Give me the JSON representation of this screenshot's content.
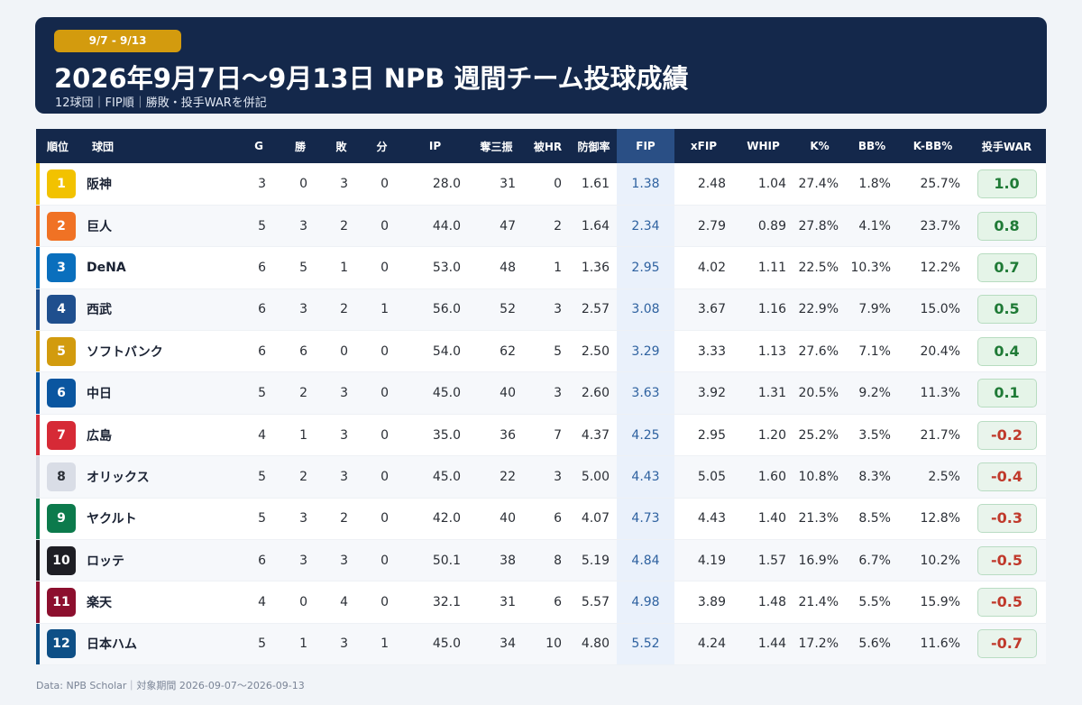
{
  "header": {
    "date_badge": "9/7 - 9/13",
    "title": "2026年9月7日～9月13日 NPB 週間チーム投球成績",
    "subtitle": "12球団｜FIP順｜勝敗・投手WARを併記"
  },
  "table": {
    "columns": [
      "順位",
      "球団",
      "G",
      "勝",
      "敗",
      "分",
      "IP",
      "奪三振",
      "被HR",
      "防御率",
      "FIP",
      "xFIP",
      "WHIP",
      "K%",
      "BB%",
      "K-BB%",
      "投手WAR"
    ],
    "rows": [
      {
        "rank": "1",
        "team": "阪神",
        "g": "3",
        "w": "0",
        "l": "3",
        "t": "0",
        "ip": "28.0",
        "so": "31",
        "hr": "0",
        "era": "1.61",
        "fip": "1.38",
        "xfip": "2.48",
        "whip": "1.04",
        "k": "27.4%",
        "bb": "1.8%",
        "kbb": "25.7%",
        "war": "1.0",
        "color": "#f2c200"
      },
      {
        "rank": "2",
        "team": "巨人",
        "g": "5",
        "w": "3",
        "l": "2",
        "t": "0",
        "ip": "44.0",
        "so": "47",
        "hr": "2",
        "era": "1.64",
        "fip": "2.34",
        "xfip": "2.79",
        "whip": "0.89",
        "k": "27.8%",
        "bb": "4.1%",
        "kbb": "23.7%",
        "war": "0.8",
        "color": "#f07224"
      },
      {
        "rank": "3",
        "team": "DeNA",
        "g": "6",
        "w": "5",
        "l": "1",
        "t": "0",
        "ip": "53.0",
        "so": "48",
        "hr": "1",
        "era": "1.36",
        "fip": "2.95",
        "xfip": "4.02",
        "whip": "1.11",
        "k": "22.5%",
        "bb": "10.3%",
        "kbb": "12.2%",
        "war": "0.7",
        "color": "#0a6fbd"
      },
      {
        "rank": "4",
        "team": "西武",
        "g": "6",
        "w": "3",
        "l": "2",
        "t": "1",
        "ip": "56.0",
        "so": "52",
        "hr": "3",
        "era": "2.57",
        "fip": "3.08",
        "xfip": "3.67",
        "whip": "1.16",
        "k": "22.9%",
        "bb": "7.9%",
        "kbb": "15.0%",
        "war": "0.5",
        "color": "#1f4f8e"
      },
      {
        "rank": "5",
        "team": "ソフトバンク",
        "g": "6",
        "w": "6",
        "l": "0",
        "t": "0",
        "ip": "54.0",
        "so": "62",
        "hr": "5",
        "era": "2.50",
        "fip": "3.29",
        "xfip": "3.33",
        "whip": "1.13",
        "k": "27.6%",
        "bb": "7.1%",
        "kbb": "20.4%",
        "war": "0.4",
        "color": "#d29b0e"
      },
      {
        "rank": "6",
        "team": "中日",
        "g": "5",
        "w": "2",
        "l": "3",
        "t": "0",
        "ip": "45.0",
        "so": "40",
        "hr": "3",
        "era": "2.60",
        "fip": "3.63",
        "xfip": "3.92",
        "whip": "1.31",
        "k": "20.5%",
        "bb": "9.2%",
        "kbb": "11.3%",
        "war": "0.1",
        "color": "#0a56a0"
      },
      {
        "rank": "7",
        "team": "広島",
        "g": "4",
        "w": "1",
        "l": "3",
        "t": "0",
        "ip": "35.0",
        "so": "36",
        "hr": "7",
        "era": "4.37",
        "fip": "4.25",
        "xfip": "2.95",
        "whip": "1.20",
        "k": "25.2%",
        "bb": "3.5%",
        "kbb": "21.7%",
        "war": "-0.2",
        "color": "#d62a36"
      },
      {
        "rank": "8",
        "team": "オリックス",
        "g": "5",
        "w": "2",
        "l": "3",
        "t": "0",
        "ip": "45.0",
        "so": "22",
        "hr": "3",
        "era": "5.00",
        "fip": "4.43",
        "xfip": "5.05",
        "whip": "1.60",
        "k": "10.8%",
        "bb": "8.3%",
        "kbb": "2.5%",
        "war": "-0.4",
        "color": "#d9dde6"
      },
      {
        "rank": "9",
        "team": "ヤクルト",
        "g": "5",
        "w": "3",
        "l": "2",
        "t": "0",
        "ip": "42.0",
        "so": "40",
        "hr": "6",
        "era": "4.07",
        "fip": "4.73",
        "xfip": "4.43",
        "whip": "1.40",
        "k": "21.3%",
        "bb": "8.5%",
        "kbb": "12.8%",
        "war": "-0.3",
        "color": "#0c7a4c"
      },
      {
        "rank": "10",
        "team": "ロッテ",
        "g": "6",
        "w": "3",
        "l": "3",
        "t": "0",
        "ip": "50.1",
        "so": "38",
        "hr": "8",
        "era": "5.19",
        "fip": "4.84",
        "xfip": "4.19",
        "whip": "1.57",
        "k": "16.9%",
        "bb": "6.7%",
        "kbb": "10.2%",
        "war": "-0.5",
        "color": "#1e1e24"
      },
      {
        "rank": "11",
        "team": "楽天",
        "g": "4",
        "w": "0",
        "l": "4",
        "t": "0",
        "ip": "32.1",
        "so": "31",
        "hr": "6",
        "era": "5.57",
        "fip": "4.98",
        "xfip": "3.89",
        "whip": "1.48",
        "k": "21.4%",
        "bb": "5.5%",
        "kbb": "15.9%",
        "war": "-0.5",
        "color": "#8c0f2e"
      },
      {
        "rank": "12",
        "team": "日本ハム",
        "g": "5",
        "w": "1",
        "l": "3",
        "t": "1",
        "ip": "45.0",
        "so": "34",
        "hr": "10",
        "era": "4.80",
        "fip": "5.52",
        "xfip": "4.24",
        "whip": "1.44",
        "k": "17.2%",
        "bb": "5.6%",
        "kbb": "11.6%",
        "war": "-0.7",
        "color": "#0e4f86"
      }
    ]
  },
  "footer": {
    "source": "Data: NPB Scholar｜対象期間 2026-09-07〜2026-09-13"
  },
  "colors": {
    "header_bg": "#14284b",
    "badge": "#d39b0e",
    "fip_highlight": "#eaf1fb",
    "war_positive": "#1f7a36",
    "war_negative": "#c0392b"
  }
}
